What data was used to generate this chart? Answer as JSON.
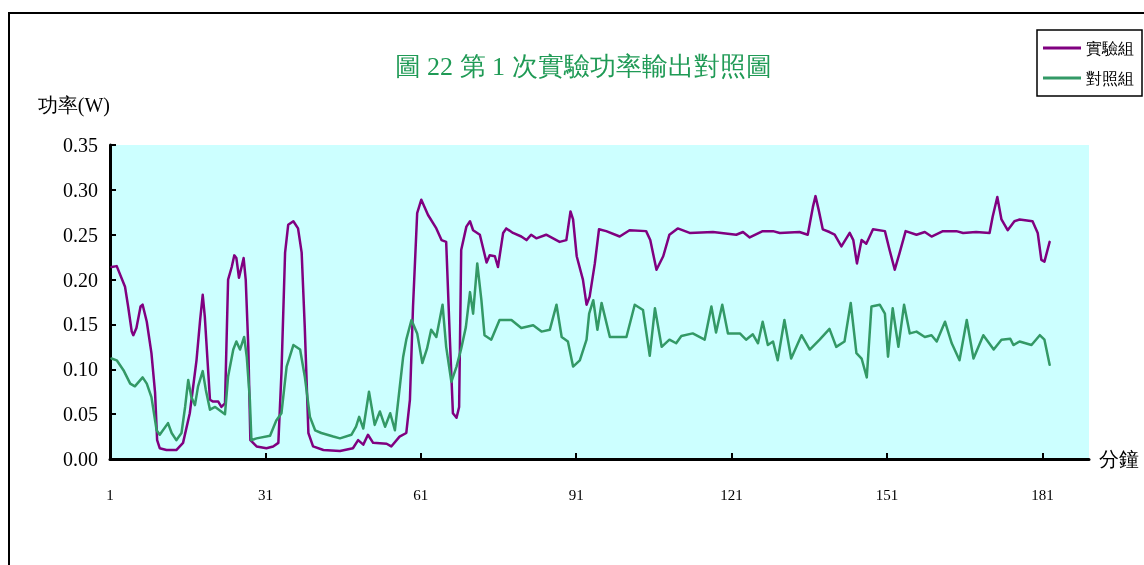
{
  "chart_data": {
    "type": "line",
    "title": "圖 22 第 1 次實驗功率輸出對照圖",
    "xlabel": "分鐘",
    "ylabel": "功率(W)",
    "xlim": [
      1,
      190
    ],
    "xticks": [
      1,
      31,
      61,
      91,
      121,
      151,
      181
    ],
    "ylim": [
      0,
      0.35
    ],
    "yticks": [
      {
        "value": 0,
        "label": "0.00"
      },
      0.05,
      {
        "value": 0.1,
        "label": "0.10"
      },
      0.15,
      {
        "value": 0.2,
        "label": "0.20"
      },
      0.25,
      {
        "value": 0.3,
        "label": "0.30"
      },
      0.35
    ],
    "grid": false,
    "legend": "top right",
    "marker": "none",
    "line_style": "solid",
    "series": [
      {
        "name": "實驗組",
        "color": "#800080",
        "x": [
          1.3,
          2.3,
          3.9,
          4.5,
          5.2,
          5.5,
          6.1,
          6.9,
          7.3,
          8.1,
          9.0,
          9.7,
          10.1,
          10.6,
          11.9,
          13.8,
          15.1,
          16.4,
          17.7,
          18.4,
          18.9,
          19.3,
          19.9,
          20.3,
          20.9,
          21.9,
          22.5,
          23.2,
          23.8,
          24.5,
          25.0,
          25.4,
          25.9,
          26.4,
          26.8,
          27.2,
          27.7,
          28.1,
          29.3,
          31.2,
          32.5,
          33.5,
          34.1,
          34.8,
          35.4,
          36.4,
          37.3,
          38.0,
          38.6,
          39.3,
          40.2,
          42.2,
          45.4,
          47.9,
          48.9,
          49.9,
          50.8,
          51.8,
          54.4,
          55.3,
          56.9,
          58.2,
          58.9,
          59.5,
          60.3,
          61.1,
          62.4,
          64.0,
          65.0,
          65.9,
          66.6,
          67.2,
          67.9,
          68.4,
          68.8,
          69.8,
          70.5,
          71.1,
          72.4,
          73.7,
          74.3,
          75.3,
          75.9,
          76.9,
          77.5,
          78.8,
          80.4,
          81.4,
          82.3,
          83.3,
          85.2,
          87.8,
          89.1,
          89.9,
          90.4,
          91.1,
          92.3,
          93.0,
          93.6,
          94.6,
          95.4,
          96.8,
          99.4,
          101.3,
          104.5,
          105.3,
          106.5,
          107.8,
          109.0,
          110.6,
          112.9,
          117.4,
          121.9,
          123.2,
          124.5,
          127.0,
          129.0,
          130.3,
          134.1,
          135.7,
          136.7,
          137.2,
          137.8,
          138.6,
          139.9,
          140.9,
          142.2,
          143.8,
          144.5,
          145.2,
          146.1,
          147.0,
          148.3,
          150.6,
          151.5,
          152.5,
          153.4,
          154.6,
          156.7,
          158.3,
          159.6,
          161.8,
          164.4,
          165.7,
          168.2,
          170.8,
          171.4,
          172.3,
          173.1,
          174.3,
          175.6,
          176.6,
          179.1,
          180.1,
          180.8,
          181.4,
          182.4
        ],
        "values": [
          0.214,
          0.215,
          0.192,
          0.17,
          0.142,
          0.138,
          0.146,
          0.17,
          0.172,
          0.153,
          0.118,
          0.074,
          0.021,
          0.012,
          0.01,
          0.01,
          0.018,
          0.051,
          0.11,
          0.155,
          0.183,
          0.159,
          0.103,
          0.066,
          0.064,
          0.064,
          0.058,
          0.062,
          0.2,
          0.214,
          0.227,
          0.224,
          0.202,
          0.214,
          0.224,
          0.2,
          0.125,
          0.021,
          0.014,
          0.012,
          0.014,
          0.018,
          0.096,
          0.23,
          0.261,
          0.265,
          0.257,
          0.23,
          0.147,
          0.029,
          0.014,
          0.01,
          0.009,
          0.012,
          0.021,
          0.016,
          0.027,
          0.018,
          0.017,
          0.014,
          0.025,
          0.029,
          0.066,
          0.17,
          0.274,
          0.289,
          0.272,
          0.257,
          0.244,
          0.242,
          0.136,
          0.051,
          0.046,
          0.058,
          0.233,
          0.259,
          0.265,
          0.255,
          0.25,
          0.219,
          0.227,
          0.226,
          0.214,
          0.252,
          0.257,
          0.252,
          0.248,
          0.244,
          0.25,
          0.246,
          0.25,
          0.242,
          0.244,
          0.276,
          0.267,
          0.226,
          0.2,
          0.172,
          0.181,
          0.218,
          0.256,
          0.254,
          0.248,
          0.255,
          0.254,
          0.244,
          0.211,
          0.226,
          0.25,
          0.257,
          0.252,
          0.253,
          0.25,
          0.253,
          0.247,
          0.254,
          0.254,
          0.252,
          0.253,
          0.25,
          0.281,
          0.293,
          0.278,
          0.256,
          0.253,
          0.25,
          0.237,
          0.252,
          0.244,
          0.218,
          0.244,
          0.24,
          0.256,
          0.254,
          0.233,
          0.211,
          0.229,
          0.254,
          0.25,
          0.253,
          0.248,
          0.254,
          0.254,
          0.252,
          0.253,
          0.252,
          0.27,
          0.292,
          0.267,
          0.255,
          0.265,
          0.267,
          0.265,
          0.252,
          0.222,
          0.22,
          0.242
        ]
      },
      {
        "name": "對照組",
        "color": "#339966",
        "x": [
          1.3,
          2.3,
          3.6,
          4.9,
          5.8,
          7.3,
          8.1,
          9.0,
          10.0,
          10.6,
          12.2,
          12.9,
          13.8,
          14.8,
          15.5,
          16.1,
          16.7,
          17.4,
          18.0,
          18.9,
          19.5,
          20.3,
          21.3,
          23.2,
          23.8,
          24.8,
          25.4,
          26.1,
          26.9,
          27.4,
          28.0,
          28.3,
          29.3,
          31.9,
          33.1,
          34.1,
          35.1,
          36.4,
          37.7,
          38.6,
          39.6,
          40.6,
          41.8,
          44.1,
          45.4,
          47.6,
          48.5,
          49.1,
          49.9,
          51.0,
          52.1,
          53.1,
          54.1,
          55.1,
          56.0,
          56.8,
          57.6,
          58.2,
          59.2,
          60.3,
          61.3,
          62.2,
          63.0,
          64.0,
          65.2,
          65.9,
          66.9,
          67.9,
          68.8,
          69.7,
          70.5,
          71.1,
          71.9,
          72.7,
          73.3,
          74.6,
          76.2,
          78.5,
          80.4,
          82.7,
          84.3,
          85.9,
          87.2,
          88.2,
          89.4,
          90.4,
          91.7,
          93.0,
          93.5,
          94.3,
          95.1,
          95.9,
          97.5,
          100.7,
          102.3,
          103.9,
          105.2,
          106.2,
          107.5,
          109.0,
          110.3,
          111.3,
          113.5,
          115.8,
          117.1,
          118.0,
          119.2,
          120.3,
          122.6,
          123.8,
          125.1,
          126.1,
          127.0,
          128.0,
          129.0,
          129.9,
          131.2,
          132.5,
          134.5,
          136.1,
          138.0,
          139.9,
          141.2,
          142.8,
          144.0,
          145.1,
          146.1,
          147.1,
          148.0,
          149.6,
          150.6,
          151.2,
          152.1,
          153.2,
          154.3,
          155.4,
          156.7,
          158.3,
          159.6,
          160.6,
          162.2,
          163.5,
          165.0,
          166.4,
          167.7,
          169.6,
          171.6,
          173.1,
          174.8,
          175.4,
          176.6,
          178.9,
          180.5,
          181.4,
          182.4
        ],
        "values": [
          0.112,
          0.11,
          0.099,
          0.084,
          0.081,
          0.091,
          0.084,
          0.069,
          0.032,
          0.027,
          0.04,
          0.029,
          0.021,
          0.029,
          0.058,
          0.088,
          0.069,
          0.06,
          0.081,
          0.098,
          0.077,
          0.055,
          0.058,
          0.05,
          0.092,
          0.122,
          0.131,
          0.122,
          0.136,
          0.114,
          0.066,
          0.021,
          0.023,
          0.026,
          0.043,
          0.051,
          0.103,
          0.127,
          0.122,
          0.092,
          0.047,
          0.032,
          0.029,
          0.025,
          0.023,
          0.027,
          0.036,
          0.047,
          0.034,
          0.075,
          0.038,
          0.053,
          0.036,
          0.051,
          0.032,
          0.073,
          0.114,
          0.133,
          0.155,
          0.14,
          0.107,
          0.123,
          0.144,
          0.136,
          0.172,
          0.125,
          0.086,
          0.103,
          0.123,
          0.147,
          0.186,
          0.162,
          0.218,
          0.177,
          0.138,
          0.133,
          0.155,
          0.155,
          0.146,
          0.149,
          0.142,
          0.144,
          0.172,
          0.136,
          0.131,
          0.103,
          0.11,
          0.133,
          0.162,
          0.177,
          0.144,
          0.174,
          0.136,
          0.136,
          0.172,
          0.166,
          0.115,
          0.168,
          0.125,
          0.133,
          0.129,
          0.137,
          0.14,
          0.133,
          0.17,
          0.141,
          0.172,
          0.14,
          0.14,
          0.133,
          0.139,
          0.129,
          0.153,
          0.127,
          0.131,
          0.11,
          0.155,
          0.112,
          0.138,
          0.122,
          0.133,
          0.145,
          0.125,
          0.131,
          0.174,
          0.118,
          0.112,
          0.091,
          0.17,
          0.172,
          0.162,
          0.114,
          0.168,
          0.125,
          0.172,
          0.14,
          0.142,
          0.136,
          0.138,
          0.131,
          0.153,
          0.129,
          0.11,
          0.155,
          0.112,
          0.138,
          0.122,
          0.133,
          0.134,
          0.127,
          0.131,
          0.127,
          0.138,
          0.133,
          0.105
        ]
      }
    ]
  }
}
